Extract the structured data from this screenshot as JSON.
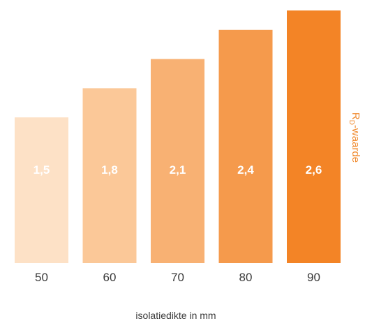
{
  "chart_data": {
    "type": "bar",
    "categories": [
      "50",
      "60",
      "70",
      "80",
      "90"
    ],
    "values": [
      1.5,
      1.8,
      2.1,
      2.4,
      2.6
    ],
    "value_labels": [
      "1,5",
      "1,8",
      "2,1",
      "2,4",
      "2,6"
    ],
    "bar_colors": [
      "#fde1c6",
      "#fbc898",
      "#f8b173",
      "#f59a4c",
      "#f38426"
    ],
    "xlabel": "isolatiedikte in mm",
    "ylabel_main": "R",
    "ylabel_sub": "D",
    "ylabel_rest": "-waarde",
    "ylim": [
      0,
      2.6
    ],
    "grid": false,
    "legend": "none"
  }
}
